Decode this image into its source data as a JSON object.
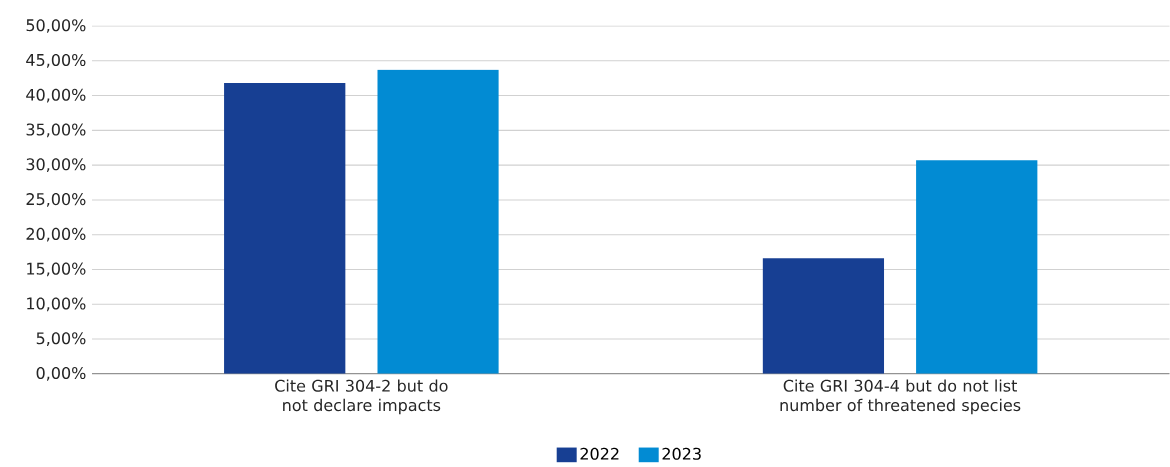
{
  "chart_data": {
    "type": "bar",
    "categories": [
      "Cite GRI 304-2 but do not declare impacts",
      "Cite GRI 304-4 but do not list number of threatened species"
    ],
    "series": [
      {
        "name": "2022",
        "color": "#173f93",
        "values": [
          41.8,
          16.6
        ]
      },
      {
        "name": "2023",
        "color": "#028bd3",
        "values": [
          43.7,
          30.7
        ]
      }
    ],
    "ylim": [
      0,
      50
    ],
    "yticks": [
      {
        "value": 0,
        "label": "0,00%"
      },
      {
        "value": 5,
        "label": "5,00%"
      },
      {
        "value": 10,
        "label": "10,00%"
      },
      {
        "value": 15,
        "label": "15,00%"
      },
      {
        "value": 20,
        "label": "20,00%"
      },
      {
        "value": 25,
        "label": "25,00%"
      },
      {
        "value": 30,
        "label": "30,00%"
      },
      {
        "value": 35,
        "label": "35,00%"
      },
      {
        "value": 40,
        "label": "40,00%"
      },
      {
        "value": 45,
        "label": "45,00%"
      },
      {
        "value": 50,
        "label": "50,00%"
      }
    ],
    "grid": "y",
    "legend": "bottom"
  }
}
